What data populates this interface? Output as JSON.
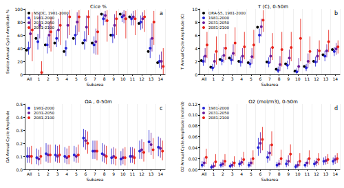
{
  "chart_data": [
    {
      "type": "scatter",
      "title": "Cice %",
      "annotations": [
        "a"
      ],
      "x_label": "Subarea",
      "y_label": "Seaice Annual Cycle Amplitude %",
      "categories": [
        "All",
        "1",
        "2",
        "3",
        "4",
        "5",
        "6",
        "7",
        "8",
        "9",
        "10",
        "11",
        "12",
        "13",
        "14"
      ],
      "ylim": [
        0,
        100
      ],
      "yticks": [
        0,
        20,
        40,
        60,
        80,
        100
      ],
      "grid": true,
      "legend": "upper left",
      "series": [
        {
          "name": "NSIDC, 1981-2000",
          "color": "#000000",
          "values": [
            37,
            55,
            45,
            48,
            35,
            55,
            48,
            48,
            92,
            60,
            92,
            88,
            78,
            35,
            18
          ]
        },
        {
          "name": "1981-2000",
          "color": "#2323d6",
          "values": [
            40,
            50,
            45,
            55,
            40,
            60,
            52,
            45,
            85,
            60,
            88,
            85,
            80,
            40,
            20
          ],
          "low": [
            30,
            38,
            32,
            42,
            28,
            45,
            38,
            32,
            75,
            48,
            80,
            75,
            68,
            25,
            10
          ],
          "high": [
            50,
            62,
            58,
            68,
            52,
            75,
            66,
            58,
            93,
            72,
            95,
            93,
            90,
            55,
            30
          ]
        },
        {
          "name": "2031-2050",
          "color": "#6a1b9a",
          "values": [
            62,
            75,
            60,
            68,
            75,
            80,
            72,
            50,
            90,
            75,
            90,
            88,
            85,
            55,
            20
          ],
          "low": [
            40,
            55,
            40,
            50,
            55,
            60,
            50,
            30,
            80,
            55,
            78,
            75,
            70,
            35,
            8
          ],
          "high": [
            85,
            92,
            80,
            85,
            92,
            95,
            90,
            70,
            97,
            92,
            98,
            97,
            95,
            78,
            35
          ]
        },
        {
          "name": "2081-2100",
          "color": "#e8231a",
          "values": [
            68,
            3,
            65,
            75,
            88,
            88,
            88,
            65,
            82,
            85,
            85,
            85,
            88,
            80,
            12
          ],
          "low": [
            20,
            0,
            35,
            45,
            60,
            65,
            60,
            30,
            50,
            60,
            55,
            60,
            65,
            45,
            0
          ],
          "high": [
            95,
            20,
            88,
            95,
            98,
            98,
            98,
            90,
            98,
            97,
            97,
            98,
            98,
            97,
            40
          ]
        }
      ]
    },
    {
      "type": "scatter",
      "title": "T (C), 0-50m",
      "annotations": [
        "b"
      ],
      "x_label": "Subarea",
      "y_label": "T Annual Cycle Amplitude (C)",
      "categories": [
        "All",
        "1",
        "2",
        "3",
        "4",
        "5",
        "6",
        "7",
        "8",
        "9",
        "10",
        "11",
        "12",
        "13",
        "14"
      ],
      "ylim": [
        0,
        10
      ],
      "yticks": [
        0,
        2,
        4,
        6,
        8,
        10
      ],
      "grid": true,
      "legend": "upper left",
      "series": [
        {
          "name": "ORA-S5, 1981-2000",
          "color": "#000000",
          "values": [
            2.1,
            1.1,
            2.3,
            2.5,
            2.0,
            1.8,
            7.2,
            1.9,
            0.8,
            1.6,
            0.5,
            1.2,
            2.0,
            3.0,
            3.8
          ]
        },
        {
          "name": "1981-2000",
          "color": "#2323d6",
          "values": [
            2.0,
            1.0,
            2.1,
            2.2,
            1.9,
            1.6,
            6.0,
            1.8,
            0.6,
            1.4,
            0.4,
            1.0,
            1.9,
            2.8,
            3.5
          ],
          "low": [
            1.3,
            0.5,
            1.4,
            1.5,
            1.2,
            1.0,
            4.8,
            1.1,
            0.2,
            0.8,
            0.1,
            0.5,
            1.2,
            2.0,
            2.8
          ],
          "high": [
            2.8,
            1.6,
            2.9,
            3.0,
            2.7,
            2.3,
            7.0,
            2.6,
            1.2,
            2.1,
            0.9,
            1.6,
            2.7,
            3.6,
            4.2
          ]
        },
        {
          "name": "2031-2050",
          "color": "#6a1b9a",
          "values": [
            2.8,
            2.0,
            2.9,
            3.2,
            2.8,
            2.7,
            7.3,
            2.8,
            1.5,
            2.5,
            1.2,
            2.0,
            2.8,
            3.6,
            3.9
          ],
          "low": [
            1.8,
            1.0,
            1.8,
            2.0,
            1.7,
            1.6,
            5.8,
            1.7,
            0.5,
            1.4,
            0.4,
            1.0,
            1.8,
            2.6,
            3.0
          ],
          "high": [
            4.0,
            3.2,
            4.2,
            4.6,
            4.0,
            4.0,
            8.5,
            4.1,
            2.8,
            3.8,
            2.5,
            3.2,
            3.9,
            4.6,
            4.8
          ]
        },
        {
          "name": "2081-2100",
          "color": "#e8231a",
          "values": [
            4.5,
            3.5,
            4.0,
            4.8,
            4.2,
            4.5,
            8.3,
            4.1,
            3.8,
            4.1,
            5.5,
            3.5,
            3.6,
            5.0,
            4.2
          ],
          "low": [
            2.5,
            1.5,
            2.2,
            2.8,
            2.3,
            2.4,
            6.5,
            2.2,
            1.2,
            2.0,
            2.0,
            1.6,
            2.2,
            3.4,
            3.2
          ],
          "high": [
            6.5,
            5.8,
            6.2,
            7.2,
            6.5,
            6.8,
            9.8,
            6.3,
            6.5,
            6.5,
            8.5,
            5.8,
            5.2,
            6.8,
            5.2
          ]
        }
      ]
    },
    {
      "type": "scatter",
      "title": "ΩA , 0-50m",
      "annotations": [
        "c"
      ],
      "x_label": "Subarea",
      "y_label": "ΩA Annual Cycle Amplitude",
      "categories": [
        "All",
        "1",
        "2",
        "3",
        "4",
        "5",
        "6",
        "7",
        "8",
        "9",
        "10",
        "11",
        "12",
        "13",
        "14"
      ],
      "ylim": [
        0,
        0.5
      ],
      "yticks": [
        {
          "value": 0,
          "label": "0.0"
        },
        0.1,
        0.2,
        0.3,
        0.4,
        0.5
      ],
      "grid": true,
      "legend": "upper left",
      "series": [
        {
          "name": "1981-2000",
          "color": "#2323d6",
          "values": [
            0.1,
            0.09,
            0.12,
            0.11,
            0.1,
            0.11,
            0.24,
            0.14,
            0.12,
            0.09,
            0.08,
            0.1,
            0.14,
            0.21,
            0.17
          ],
          "low": [
            0.05,
            0.04,
            0.06,
            0.06,
            0.05,
            0.06,
            0.17,
            0.08,
            0.06,
            0.04,
            0.03,
            0.05,
            0.08,
            0.13,
            0.1
          ],
          "high": [
            0.17,
            0.16,
            0.2,
            0.19,
            0.17,
            0.18,
            0.31,
            0.22,
            0.2,
            0.16,
            0.14,
            0.17,
            0.22,
            0.3,
            0.25
          ]
        },
        {
          "name": "2031-2050",
          "color": "#6a1b9a",
          "values": [
            0.1,
            0.08,
            0.11,
            0.1,
            0.09,
            0.1,
            0.22,
            0.14,
            0.11,
            0.1,
            0.09,
            0.1,
            0.15,
            0.19,
            0.16
          ],
          "low": [
            0.05,
            0.03,
            0.05,
            0.05,
            0.04,
            0.05,
            0.15,
            0.08,
            0.05,
            0.04,
            0.04,
            0.05,
            0.08,
            0.11,
            0.09
          ],
          "high": [
            0.17,
            0.15,
            0.19,
            0.18,
            0.16,
            0.17,
            0.3,
            0.22,
            0.19,
            0.17,
            0.16,
            0.17,
            0.23,
            0.28,
            0.24
          ]
        },
        {
          "name": "2081-2100",
          "color": "#e8231a",
          "values": [
            0.1,
            0.1,
            0.11,
            0.11,
            0.1,
            0.11,
            0.2,
            0.14,
            0.1,
            0.09,
            0.09,
            0.09,
            0.13,
            0.15,
            0.14
          ],
          "low": [
            0.04,
            0.04,
            0.05,
            0.05,
            0.04,
            0.05,
            0.12,
            0.07,
            0.04,
            0.03,
            0.03,
            0.04,
            0.06,
            0.08,
            0.07
          ],
          "high": [
            0.18,
            0.17,
            0.19,
            0.19,
            0.18,
            0.19,
            0.29,
            0.22,
            0.18,
            0.16,
            0.17,
            0.16,
            0.21,
            0.24,
            0.22
          ]
        }
      ]
    },
    {
      "type": "scatter",
      "title": "O2 (mol/m3), 0-50m",
      "annotations": [
        "d"
      ],
      "x_label": "Subarea",
      "y_label": "O2 Annual Cycle Amplitude (mol/m3)",
      "categories": [
        "All",
        "1",
        "2",
        "3",
        "4",
        "5",
        "6",
        "7",
        "8",
        "9",
        "10",
        "11",
        "12",
        "13",
        "14"
      ],
      "ylim": [
        0,
        0.12
      ],
      "yticks": [
        {
          "value": 0,
          "label": "0.00"
        },
        0.02,
        0.04,
        0.06,
        0.08,
        {
          "value": 0.1,
          "label": "0.10"
        },
        0.12
      ],
      "grid": true,
      "legend": "upper left",
      "series": [
        {
          "name": "1981-2000",
          "color": "#2323d6",
          "values": [
            0.008,
            0.004,
            0.008,
            0.006,
            0.01,
            0.008,
            0.04,
            0.022,
            0.008,
            0.01,
            0.005,
            0.008,
            0.01,
            0.015,
            0.015
          ],
          "low": [
            0.003,
            0.001,
            0.003,
            0.002,
            0.004,
            0.003,
            0.025,
            0.012,
            0.003,
            0.004,
            0.001,
            0.003,
            0.004,
            0.008,
            0.008
          ],
          "high": [
            0.015,
            0.009,
            0.014,
            0.012,
            0.017,
            0.014,
            0.058,
            0.034,
            0.014,
            0.018,
            0.01,
            0.014,
            0.017,
            0.022,
            0.022
          ]
        },
        {
          "name": "2031-2050",
          "color": "#6a1b9a",
          "values": [
            0.012,
            0.006,
            0.01,
            0.008,
            0.013,
            0.012,
            0.048,
            0.03,
            0.01,
            0.015,
            0.008,
            0.012,
            0.013,
            0.016,
            0.018
          ],
          "low": [
            0.005,
            0.002,
            0.004,
            0.003,
            0.006,
            0.005,
            0.03,
            0.016,
            0.004,
            0.006,
            0.003,
            0.005,
            0.006,
            0.009,
            0.01
          ],
          "high": [
            0.022,
            0.013,
            0.018,
            0.015,
            0.022,
            0.021,
            0.068,
            0.046,
            0.018,
            0.026,
            0.015,
            0.02,
            0.021,
            0.024,
            0.026
          ]
        },
        {
          "name": "2081-2100",
          "color": "#e8231a",
          "values": [
            0.022,
            0.014,
            0.015,
            0.012,
            0.018,
            0.02,
            0.055,
            0.045,
            0.02,
            0.028,
            0.015,
            0.02,
            0.018,
            0.018,
            0.02
          ],
          "low": [
            0.01,
            0.005,
            0.006,
            0.005,
            0.008,
            0.009,
            0.035,
            0.025,
            0.008,
            0.012,
            0.006,
            0.009,
            0.008,
            0.01,
            0.012
          ],
          "high": [
            0.038,
            0.028,
            0.028,
            0.024,
            0.032,
            0.035,
            0.078,
            0.07,
            0.036,
            0.046,
            0.03,
            0.035,
            0.03,
            0.028,
            0.03
          ]
        }
      ]
    }
  ]
}
